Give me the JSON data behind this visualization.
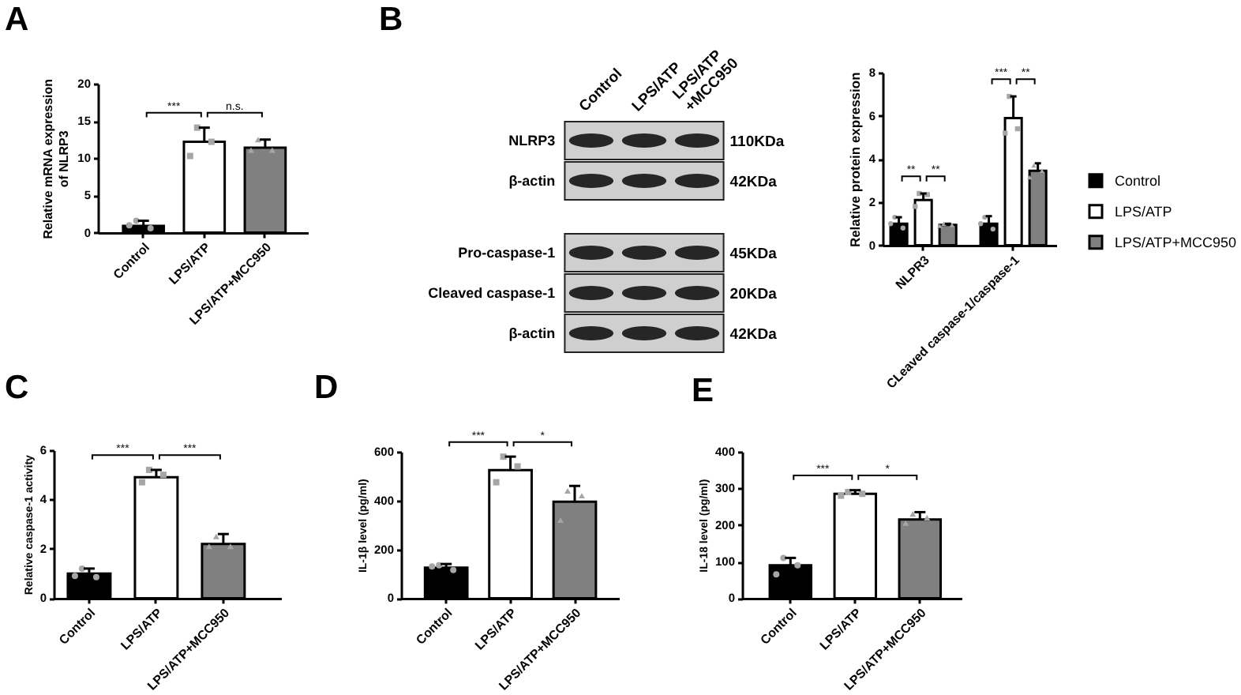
{
  "chart_data": [
    {
      "type": "bar",
      "title": "A",
      "ylabel": "Relative mRNA expression of NLRP3",
      "categories": [
        "Control",
        "LPS/ATP",
        "LPS/ATP+MCC950"
      ],
      "ylim": [
        0,
        20
      ],
      "yticks": [
        0,
        5,
        10,
        15,
        20
      ],
      "series": [
        {
          "type": "bar",
          "colors": [
            "#000000",
            "#ffffff",
            "#808080"
          ],
          "values": [
            0.9,
            12.2,
            11.4
          ],
          "errors": [
            [
              0.9,
              1.6
            ],
            [
              12.2,
              14.1
            ],
            [
              11.4,
              12.5
            ]
          ]
        },
        {
          "type": "scatter",
          "x": [
            "Control",
            "Control",
            "Control"
          ],
          "values": [
            1.6,
            0.6,
            1.0
          ],
          "color": "#a6a6a6",
          "marker": "circle"
        },
        {
          "type": "scatter",
          "x": [
            "LPS/ATP",
            "LPS/ATP",
            "LPS/ATP"
          ],
          "values": [
            14.1,
            12.2,
            10.3
          ],
          "color": "#a6a6a6",
          "marker": "square"
        },
        {
          "type": "scatter",
          "x": [
            "LPS/ATP+MCC950",
            "LPS/ATP+MCC950",
            "LPS/ATP+MCC950"
          ],
          "values": [
            12.5,
            11.1,
            11.1
          ],
          "color": "#a6a6a6",
          "marker": "triangle"
        }
      ],
      "annotations": [
        "***",
        "n.s."
      ]
    },
    {
      "type": "other",
      "title": "B",
      "categories": [
        "Control",
        "LPS/ATP",
        "LPS/ATP +MCC950"
      ],
      "y_categories": [
        "NLRP3",
        "β-actin",
        "Pro-caspase-1",
        "Cleaved caspase-1",
        "β-actin"
      ],
      "y2_categories": [
        "110KDa",
        "42KDa",
        "45KDa",
        "20KDa",
        "42KDa"
      ]
    },
    {
      "type": "bar",
      "ylabel": "Relative protein expression",
      "categories": [
        "NLPR3",
        "CLeaved caspase-1/caspase-1"
      ],
      "ylim": [
        0,
        8
      ],
      "yticks": [
        0,
        2,
        4,
        6,
        8
      ],
      "legend": "right",
      "series": [
        {
          "name": "Control",
          "type": "bar",
          "color": "#000000",
          "values": [
            1.0,
            1.0
          ],
          "errors": [
            [
              1.0,
              1.3
            ],
            [
              1.0,
              1.35
            ]
          ]
        },
        {
          "name": "LPS/ATP",
          "type": "bar",
          "color": "#ffffff",
          "values": [
            2.1,
            5.9
          ],
          "errors": [
            [
              2.1,
              2.4
            ],
            [
              5.9,
              6.9
            ]
          ]
        },
        {
          "name": "LPS/ATP+MCC950",
          "type": "bar",
          "color": "#808080",
          "values": [
            0.95,
            3.45
          ],
          "errors": [
            [
              0.95,
              1.0
            ],
            [
              3.45,
              3.8
            ]
          ]
        },
        {
          "type": "scatter",
          "x": [
            "NLPR3",
            "NLPR3",
            "NLPR3",
            "CLeaved caspase-1/caspase-1",
            "CLeaved caspase-1/caspase-1",
            "CLeaved caspase-1/caspase-1"
          ],
          "values": [
            1.3,
            0.8,
            1.0,
            1.3,
            0.75,
            1.0
          ],
          "color": "#a6a6a6",
          "marker": "circle"
        },
        {
          "type": "scatter",
          "x": [
            "NLPR3",
            "NLPR3",
            "NLPR3",
            "CLeaved caspase-1/caspase-1",
            "CLeaved caspase-1/caspase-1",
            "CLeaved caspase-1/caspase-1"
          ],
          "values": [
            2.4,
            2.35,
            1.8,
            6.9,
            5.4,
            5.2
          ],
          "color": "#a6a6a6",
          "marker": "square"
        },
        {
          "type": "scatter",
          "x": [
            "NLPR3",
            "NLPR3",
            "NLPR3",
            "CLeaved caspase-1/caspase-1",
            "CLeaved caspase-1/caspase-1",
            "CLeaved caspase-1/caspase-1"
          ],
          "values": [
            1.0,
            0.95,
            0.9,
            3.7,
            3.45,
            3.15
          ],
          "color": "#a6a6a6",
          "marker": "triangle"
        }
      ],
      "annotations": [
        "**",
        "**",
        "***",
        "**"
      ]
    },
    {
      "type": "bar",
      "title": "C",
      "ylabel": "Relative caspase-1 activity",
      "categories": [
        "Control",
        "LPS/ATP",
        "LPS/ATP+MCC950"
      ],
      "ylim": [
        0,
        6
      ],
      "yticks": [
        0,
        2,
        4,
        6
      ],
      "series": [
        {
          "type": "bar",
          "colors": [
            "#000000",
            "#ffffff",
            "#808080"
          ],
          "values": [
            1.0,
            4.9,
            2.2
          ],
          "errors": [
            [
              1.0,
              1.2
            ],
            [
              4.9,
              5.2
            ],
            [
              2.2,
              2.6
            ]
          ]
        },
        {
          "type": "scatter",
          "x": [
            "Control",
            "Control",
            "Control"
          ],
          "values": [
            1.2,
            0.85,
            0.9
          ],
          "color": "#a6a6a6",
          "marker": "circle"
        },
        {
          "type": "scatter",
          "x": [
            "LPS/ATP",
            "LPS/ATP",
            "LPS/ATP"
          ],
          "values": [
            5.2,
            5.0,
            4.7
          ],
          "color": "#a6a6a6",
          "marker": "square"
        },
        {
          "type": "scatter",
          "x": [
            "LPS/ATP+MCC950",
            "LPS/ATP+MCC950",
            "LPS/ATP+MCC950"
          ],
          "values": [
            2.5,
            2.1,
            2.1
          ],
          "color": "#a6a6a6",
          "marker": "triangle"
        }
      ],
      "annotations": [
        "***",
        "***"
      ]
    },
    {
      "type": "bar",
      "title": "D",
      "ylabel": "IL-1β level (pg/ml)",
      "categories": [
        "Control",
        "LPS/ATP",
        "LPS/ATP+MCC950"
      ],
      "ylim": [
        0,
        600
      ],
      "yticks": [
        0,
        200,
        400,
        600
      ],
      "series": [
        {
          "type": "bar",
          "colors": [
            "#000000",
            "#ffffff",
            "#808080"
          ],
          "values": [
            125,
            525,
            395
          ],
          "errors": [
            [
              125,
              140
            ],
            [
              525,
              580
            ],
            [
              395,
              460
            ]
          ]
        },
        {
          "type": "scatter",
          "x": [
            "Control",
            "Control",
            "Control"
          ],
          "values": [
            135,
            115,
            130
          ],
          "color": "#a6a6a6",
          "marker": "circle"
        },
        {
          "type": "scatter",
          "x": [
            "LPS/ATP",
            "LPS/ATP",
            "LPS/ATP"
          ],
          "values": [
            580,
            540,
            475
          ],
          "color": "#a6a6a6",
          "marker": "square"
        },
        {
          "type": "scatter",
          "x": [
            "LPS/ATP+MCC950",
            "LPS/ATP+MCC950",
            "LPS/ATP+MCC950"
          ],
          "values": [
            440,
            420,
            320
          ],
          "color": "#a6a6a6",
          "marker": "triangle"
        }
      ],
      "annotations": [
        "***",
        "*"
      ]
    },
    {
      "type": "bar",
      "title": "E",
      "ylabel": "IL-18 level (pg/ml)",
      "categories": [
        "Control",
        "LPS/ATP",
        "LPS/ATP+MCC950"
      ],
      "ylim": [
        0,
        400
      ],
      "yticks": [
        0,
        100,
        200,
        300,
        400
      ],
      "series": [
        {
          "type": "bar",
          "colors": [
            "#000000",
            "#ffffff",
            "#808080"
          ],
          "values": [
            90,
            285,
            215
          ],
          "errors": [
            [
              90,
              110
            ],
            [
              285,
              295
            ],
            [
              215,
              235
            ]
          ]
        },
        {
          "type": "scatter",
          "x": [
            "Control",
            "Control",
            "Control"
          ],
          "values": [
            110,
            90,
            65
          ],
          "color": "#a6a6a6",
          "marker": "circle"
        },
        {
          "type": "scatter",
          "x": [
            "LPS/ATP",
            "LPS/ATP",
            "LPS/ATP"
          ],
          "values": [
            290,
            285,
            280
          ],
          "color": "#a6a6a6",
          "marker": "square"
        },
        {
          "type": "scatter",
          "x": [
            "LPS/ATP+MCC950",
            "LPS/ATP+MCC950",
            "LPS/ATP+MCC950"
          ],
          "values": [
            230,
            220,
            205
          ],
          "color": "#a6a6a6",
          "marker": "triangle"
        }
      ],
      "annotations": [
        "***",
        "*"
      ]
    }
  ]
}
